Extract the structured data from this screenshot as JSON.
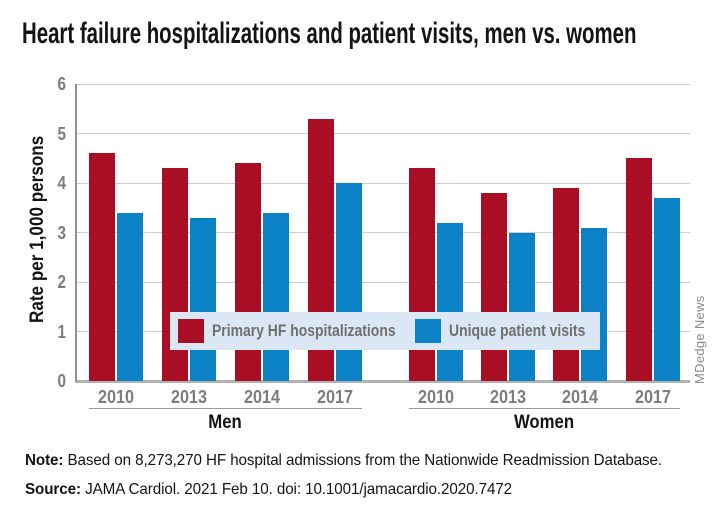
{
  "title": "Heart failure hospitalizations and patient visits, men vs. women",
  "watermark": "MDedge News",
  "note": {
    "label": "Note:",
    "text": "Based on 8,273,270 HF hospital admissions from the Nationwide Readmission Database."
  },
  "source": {
    "label": "Source:",
    "text": "JAMA Cardiol. 2021 Feb 10. doi: 10.1001/jamacardio.2020.7472"
  },
  "chart_data": {
    "type": "bar",
    "title": "Heart failure hospitalizations and patient visits, men vs. women",
    "ylabel": "Rate per 1,000 persons",
    "ylim": [
      0,
      6
    ],
    "yticks": [
      0,
      1,
      2,
      3,
      4,
      5,
      6
    ],
    "grid": true,
    "legend_position": "horizontal band inside plot",
    "groups": [
      {
        "label": "Men",
        "categories": [
          "2010",
          "2013",
          "2014",
          "2017"
        ]
      },
      {
        "label": "Women",
        "categories": [
          "2010",
          "2013",
          "2014",
          "2017"
        ]
      }
    ],
    "series": [
      {
        "name": "Primary HF hospitalizations",
        "color": "#a90e24",
        "values": [
          [
            4.6,
            4.3,
            4.4,
            5.3
          ],
          [
            4.3,
            3.8,
            3.9,
            4.5
          ]
        ]
      },
      {
        "name": "Unique patient visits",
        "color": "#0b82c6",
        "values": [
          [
            3.4,
            3.3,
            3.4,
            4.0
          ],
          [
            3.2,
            3.0,
            3.1,
            3.7
          ]
        ]
      }
    ]
  },
  "colors": {
    "bar_red": "#a90e24",
    "bar_blue": "#0b82c6",
    "legend_bg": "#dbe7f5",
    "grid": "#cccccc",
    "baseline": "#b1b1b1",
    "axis_text": "#7d7d7d",
    "text": "#141414",
    "watermark": "#8a8a8a"
  }
}
